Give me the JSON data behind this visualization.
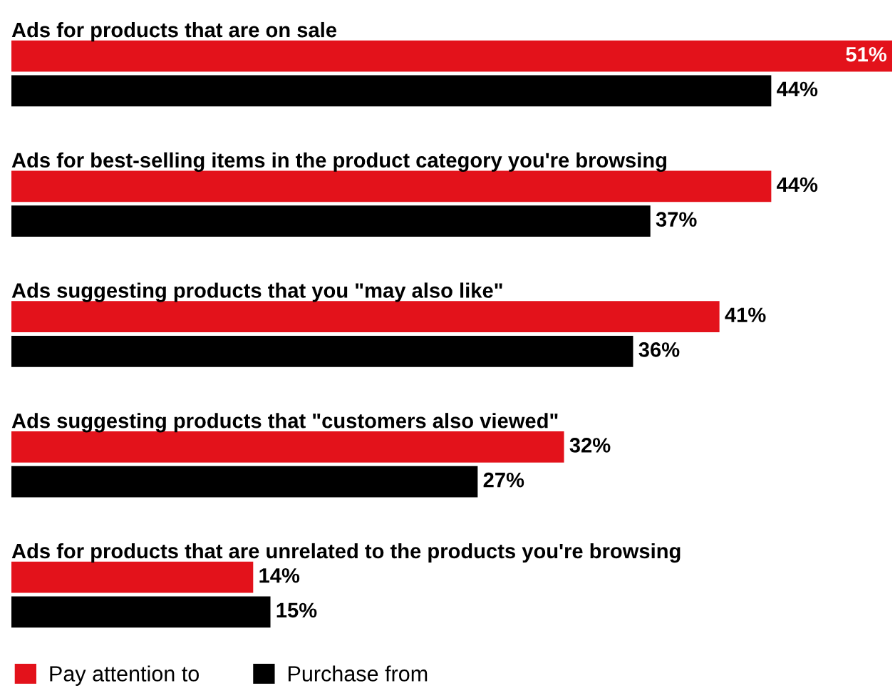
{
  "chart_data": {
    "type": "bar",
    "orientation": "horizontal",
    "categories": [
      "Ads for products that are on sale",
      "Ads for best-selling items in the product category you're browsing",
      "Ads suggesting products that you \"may also like\"",
      "Ads suggesting products that \"customers also viewed\"",
      "Ads for products that are unrelated to the products you're browsing"
    ],
    "series": [
      {
        "name": "Pay attention to",
        "color": "#e3121b",
        "values": [
          51,
          44,
          41,
          32,
          14
        ],
        "value_labels": [
          "51%",
          "44%",
          "41%",
          "32%",
          "14%"
        ]
      },
      {
        "name": "Purchase from",
        "color": "#000000",
        "values": [
          44,
          37,
          36,
          27,
          15
        ],
        "value_labels": [
          "44%",
          "37%",
          "36%",
          "27%",
          "15%"
        ]
      }
    ],
    "legend": "bottom left"
  }
}
